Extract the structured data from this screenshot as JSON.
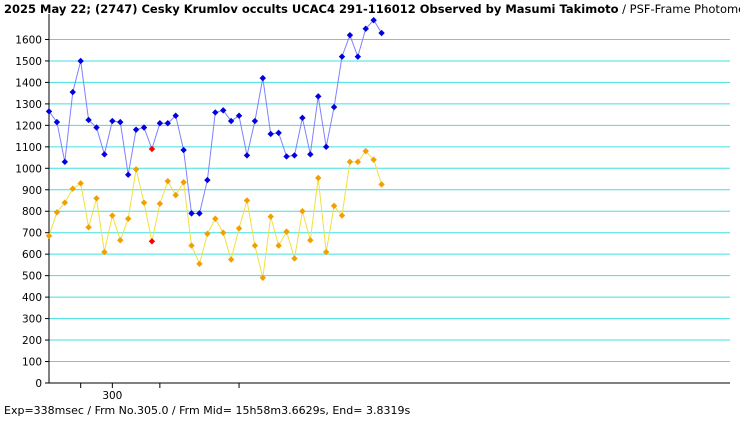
{
  "header": {
    "title_bold": "2025 May 22; (2747) Cesky Krumlov occults UCAC4 291-116012 Observed by Masumi Takimoto",
    "title_rest": " / PSF-Frame Photometry /"
  },
  "footer": {
    "text": "Exp=338msec / Frm No.305.0 / Frm Mid= 15h58m3.6629s, End= 3.8319s"
  },
  "colors": {
    "grid": "#40e0e0",
    "blue_line": "#8080ff",
    "blue_point": "#0000e0",
    "yellow_line": "#f0e040",
    "yellow_point": "#f0a000",
    "highlight": "#ff0000"
  },
  "chart_data": {
    "type": "line",
    "ylim": [
      0,
      1700
    ],
    "y_ticks": [
      0,
      100,
      200,
      300,
      400,
      500,
      600,
      700,
      800,
      900,
      1000,
      1100,
      1200,
      1300,
      1400,
      1500,
      1600
    ],
    "x_tick_labels": [
      {
        "frame": 300,
        "label": "300"
      }
    ],
    "x_minor_ticks": [
      296,
      306,
      316
    ],
    "x_range": [
      292,
      378
    ],
    "highlight_frames": [
      305
    ],
    "series": [
      {
        "color": "blue",
        "x": [
          292,
          293,
          294,
          295,
          296,
          297,
          298,
          299,
          300,
          301,
          302,
          303,
          304,
          305,
          306,
          307,
          308,
          309,
          310,
          311,
          312,
          313,
          314,
          315,
          316,
          317,
          318,
          319,
          320,
          321,
          322,
          323,
          324,
          325,
          326,
          327,
          328,
          329,
          330,
          331,
          332,
          333,
          334
        ],
        "values": [
          1265,
          1215,
          1030,
          1355,
          1500,
          1225,
          1190,
          1065,
          1220,
          1215,
          970,
          1180,
          1190,
          1090,
          1210,
          1210,
          1245,
          1085,
          790,
          790,
          945,
          1260,
          1270,
          1220,
          1245,
          1060,
          1220,
          1420,
          1160,
          1165,
          1055,
          1060,
          1235,
          1065,
          1335,
          1100,
          1285,
          1520,
          1620,
          1520,
          1650,
          1690,
          1630
        ]
      },
      {
        "color": "yellow",
        "x": [
          292,
          293,
          294,
          295,
          296,
          297,
          298,
          299,
          300,
          301,
          302,
          303,
          304,
          305,
          306,
          307,
          308,
          309,
          310,
          311,
          312,
          313,
          314,
          315,
          316,
          317,
          318,
          319,
          320,
          321,
          322,
          323,
          324,
          325,
          326,
          327,
          328,
          329,
          330,
          331,
          332,
          333,
          334
        ],
        "values": [
          685,
          795,
          840,
          905,
          930,
          725,
          860,
          610,
          780,
          665,
          765,
          995,
          840,
          660,
          835,
          940,
          875,
          935,
          640,
          555,
          695,
          765,
          700,
          575,
          720,
          850,
          640,
          490,
          775,
          640,
          705,
          580,
          800,
          665,
          955,
          610,
          825,
          780,
          1030,
          1030,
          1080,
          1040,
          925
        ]
      }
    ]
  }
}
